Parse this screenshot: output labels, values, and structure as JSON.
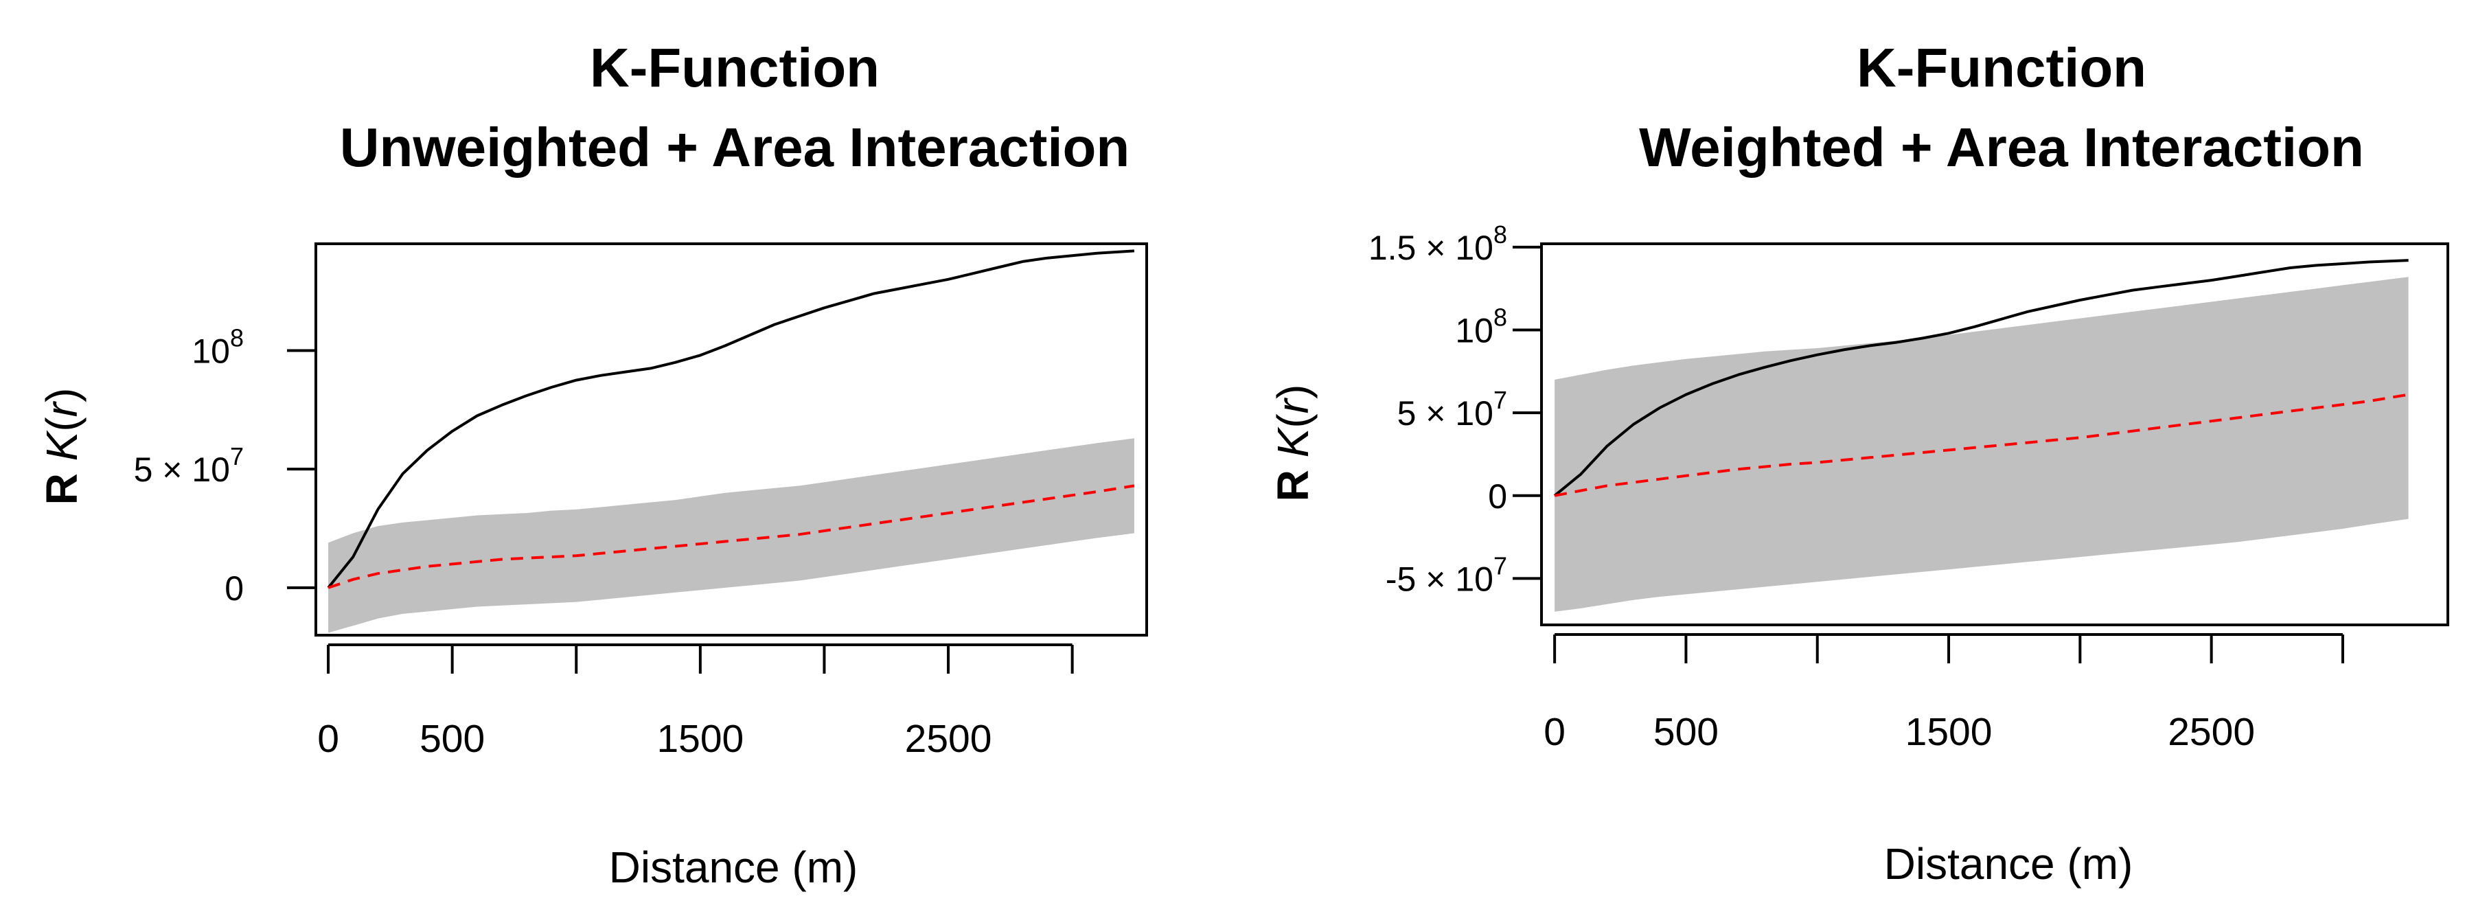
{
  "chart_data": [
    {
      "type": "line",
      "title": "K-Function",
      "subtitle": "Unweighted + Area Interaction",
      "xlabel": "Distance (m)",
      "ylabel_prefix": "R",
      "ylabel_func": "K",
      "ylabel_arg": "r",
      "xlim": [
        -50,
        3300
      ],
      "ylim": [
        -20000000,
        145000000
      ],
      "x_ticks": [
        0,
        500,
        1000,
        1500,
        2000,
        2500,
        3000
      ],
      "x_tick_labels": [
        "0",
        "500",
        "",
        "1500",
        "",
        "2500",
        ""
      ],
      "y_ticks": [
        {
          "value": 0,
          "base": "0",
          "exp": ""
        },
        {
          "value": 50000000,
          "base": "5 × 10",
          "exp": "7"
        },
        {
          "value": 100000000,
          "base": "10",
          "exp": "8"
        }
      ],
      "x": [
        0,
        100,
        200,
        300,
        400,
        500,
        600,
        700,
        800,
        900,
        1000,
        1100,
        1200,
        1300,
        1400,
        1500,
        1600,
        1700,
        1800,
        1900,
        2000,
        2100,
        2200,
        2300,
        2400,
        2500,
        2600,
        2700,
        2800,
        2900,
        3000,
        3100,
        3250
      ],
      "series": [
        {
          "style": "solid",
          "color": "#000000",
          "values": [
            0,
            13000000,
            33000000,
            48000000,
            58000000,
            66000000,
            72500000,
            77000000,
            81000000,
            84500000,
            87500000,
            89500000,
            91000000,
            92500000,
            95000000,
            98000000,
            102000000,
            106500000,
            111000000,
            114500000,
            118000000,
            121000000,
            124000000,
            126000000,
            128000000,
            130000000,
            132500000,
            135000000,
            137500000,
            139000000,
            140000000,
            141000000,
            142000000
          ]
        },
        {
          "style": "dashed",
          "color": "#ff0000",
          "values": [
            0,
            3500000,
            6000000,
            7500000,
            9000000,
            10000000,
            11000000,
            12000000,
            12500000,
            13000000,
            13500000,
            14500000,
            15500000,
            16500000,
            17500000,
            18500000,
            19500000,
            20500000,
            21500000,
            22500000,
            24000000,
            25500000,
            27000000,
            28500000,
            30000000,
            31500000,
            33000000,
            34500000,
            36000000,
            37500000,
            39000000,
            40500000,
            43000000
          ]
        }
      ],
      "envelope": {
        "color": "#c0c0c0",
        "upper": [
          19000000,
          23000000,
          26000000,
          27500000,
          28500000,
          29500000,
          30500000,
          31000000,
          31500000,
          32500000,
          33000000,
          34000000,
          35000000,
          36000000,
          37000000,
          38500000,
          40000000,
          41000000,
          42000000,
          43000000,
          44500000,
          46000000,
          47500000,
          49000000,
          50500000,
          52000000,
          53500000,
          55000000,
          56500000,
          58000000,
          59500000,
          61000000,
          63000000
        ],
        "lower": [
          -19000000,
          -16000000,
          -13000000,
          -11000000,
          -10000000,
          -9000000,
          -8000000,
          -7500000,
          -7000000,
          -6500000,
          -6000000,
          -5000000,
          -4000000,
          -3000000,
          -2000000,
          -1000000,
          0,
          1000000,
          2000000,
          3000000,
          4500000,
          6000000,
          7500000,
          9000000,
          10500000,
          12000000,
          13500000,
          15000000,
          16500000,
          18000000,
          19500000,
          21000000,
          23000000
        ]
      }
    },
    {
      "type": "line",
      "title": "K-Function",
      "subtitle": "Weighted + Area Interaction",
      "xlabel": "Distance (m)",
      "ylabel_prefix": "R",
      "ylabel_func": "K",
      "ylabel_arg": "r",
      "xlim": [
        -50,
        3400
      ],
      "ylim": [
        -78000000,
        152000000
      ],
      "x_ticks": [
        0,
        500,
        1000,
        1500,
        2000,
        2500,
        3000
      ],
      "x_tick_labels": [
        "0",
        "500",
        "",
        "1500",
        "",
        "2500",
        ""
      ],
      "y_ticks": [
        {
          "value": -50000000,
          "base": "-5 × 10",
          "exp": "7"
        },
        {
          "value": 0,
          "base": "0",
          "exp": ""
        },
        {
          "value": 50000000,
          "base": "5 × 10",
          "exp": "7"
        },
        {
          "value": 100000000,
          "base": "10",
          "exp": "8"
        },
        {
          "value": 150000000,
          "base": "1.5 × 10",
          "exp": "8"
        }
      ],
      "x": [
        0,
        100,
        200,
        300,
        400,
        500,
        600,
        700,
        800,
        900,
        1000,
        1100,
        1200,
        1300,
        1400,
        1500,
        1600,
        1700,
        1800,
        1900,
        2000,
        2100,
        2200,
        2300,
        2400,
        2500,
        2600,
        2700,
        2800,
        2900,
        3000,
        3100,
        3250
      ],
      "series": [
        {
          "style": "solid",
          "color": "#000000",
          "values": [
            0,
            13000000,
            30000000,
            43000000,
            53000000,
            61000000,
            67500000,
            73000000,
            77500000,
            81500000,
            85000000,
            88000000,
            90500000,
            92500000,
            95000000,
            98000000,
            102000000,
            106500000,
            111000000,
            114500000,
            118000000,
            121000000,
            124000000,
            126000000,
            128000000,
            130000000,
            132500000,
            135000000,
            137500000,
            139000000,
            140000000,
            141000000,
            142000000
          ]
        },
        {
          "style": "dashed",
          "color": "#ff0000",
          "values": [
            0,
            3000000,
            6000000,
            8000000,
            10000000,
            12000000,
            14000000,
            16000000,
            17500000,
            19000000,
            20000000,
            21500000,
            23000000,
            24500000,
            26000000,
            27500000,
            29000000,
            30500000,
            32000000,
            33500000,
            35000000,
            37000000,
            39000000,
            41000000,
            43000000,
            45000000,
            47000000,
            49000000,
            51000000,
            53000000,
            55000000,
            57000000,
            61000000
          ]
        }
      ],
      "envelope": {
        "color": "#c0c0c0",
        "upper": [
          70000000,
          73000000,
          76000000,
          78500000,
          80500000,
          82500000,
          84000000,
          85500000,
          87000000,
          88000000,
          89000000,
          90500000,
          92000000,
          93500000,
          95000000,
          97000000,
          99000000,
          101000000,
          103000000,
          105000000,
          107000000,
          109000000,
          111000000,
          113000000,
          115000000,
          117000000,
          119000000,
          121000000,
          123000000,
          125000000,
          127000000,
          129000000,
          132000000
        ],
        "lower": [
          -70000000,
          -68000000,
          -65500000,
          -63000000,
          -61000000,
          -59500000,
          -58000000,
          -56500000,
          -55000000,
          -53500000,
          -52000000,
          -50500000,
          -49000000,
          -47500000,
          -46000000,
          -44500000,
          -43000000,
          -41500000,
          -40000000,
          -38500000,
          -37000000,
          -35500000,
          -34000000,
          -32500000,
          -31000000,
          -29500000,
          -28000000,
          -26000000,
          -24000000,
          -22000000,
          -20000000,
          -17500000,
          -14000000
        ]
      }
    }
  ]
}
